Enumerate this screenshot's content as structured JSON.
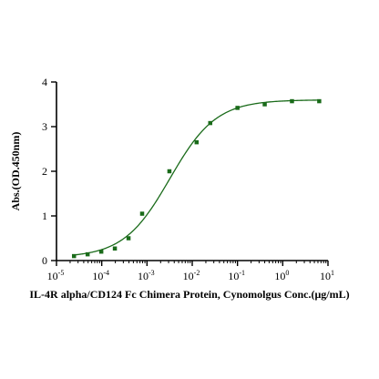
{
  "chart_data": {
    "type": "scatter",
    "xscale": "log",
    "xlim": [
      1e-05,
      10
    ],
    "ylim": [
      0,
      4
    ],
    "x_tick_labels": [
      {
        "base": "10",
        "exp": "-5"
      },
      {
        "base": "10",
        "exp": "-4"
      },
      {
        "base": "10",
        "exp": "-3"
      },
      {
        "base": "10",
        "exp": "-2"
      },
      {
        "base": "10",
        "exp": "-1"
      },
      {
        "base": "10",
        "exp": "0"
      },
      {
        "base": "10",
        "exp": "1"
      }
    ],
    "y_ticks": [
      "0",
      "1",
      "2",
      "3",
      "4"
    ],
    "xlabel": "IL-4R alpha/CD124 Fc Chimera Protein, Cynomolgus Conc.(μg/mL)",
    "ylabel": "Abs.(OD.450nm)",
    "grid": false,
    "legend": "none",
    "series": [
      {
        "points": [
          {
            "x": 2.44e-05,
            "y": 0.1
          },
          {
            "x": 4.88e-05,
            "y": 0.14
          },
          {
            "x": 9.77e-05,
            "y": 0.2
          },
          {
            "x": 0.000195,
            "y": 0.27
          },
          {
            "x": 0.000391,
            "y": 0.5
          },
          {
            "x": 0.000781,
            "y": 1.05
          },
          {
            "x": 0.00313,
            "y": 2.0
          },
          {
            "x": 0.0125,
            "y": 2.65
          },
          {
            "x": 0.025,
            "y": 3.08
          },
          {
            "x": 0.1,
            "y": 3.42
          },
          {
            "x": 0.4,
            "y": 3.5
          },
          {
            "x": 1.6,
            "y": 3.57
          },
          {
            "x": 6.4,
            "y": 3.57
          }
        ],
        "fit": {
          "model": "4PL",
          "bottom": 0.07,
          "top": 3.6,
          "ec50": 0.0032,
          "hill": 0.85
        }
      }
    ],
    "colors": {
      "series": "#1a6b1a",
      "axis": "#000000"
    }
  }
}
